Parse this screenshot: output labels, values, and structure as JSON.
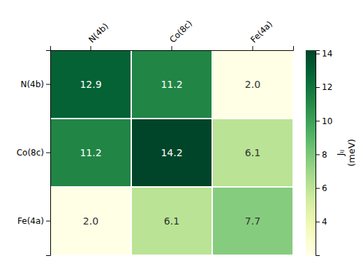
{
  "chart_data": {
    "type": "heatmap",
    "categories": [
      "N(4b)",
      "Co(8c)",
      "Fe(4a)"
    ],
    "matrix": [
      [
        12.9,
        11.2,
        2.0
      ],
      [
        11.2,
        14.2,
        6.1
      ],
      [
        2.0,
        6.1,
        7.7
      ]
    ],
    "value_labels": [
      [
        "12.9",
        "11.2",
        "2.0"
      ],
      [
        "11.2",
        "14.2",
        "6.1"
      ],
      [
        "2.0",
        "6.1",
        "7.7"
      ]
    ],
    "data_labels": true,
    "color": "YlGn",
    "colorbar_range": [
      2.0,
      14.2
    ],
    "colorbar_ticks": [
      4,
      6,
      8,
      10,
      12,
      14
    ],
    "colorbar_label": "Jᵢⱼ\n(meV)"
  }
}
